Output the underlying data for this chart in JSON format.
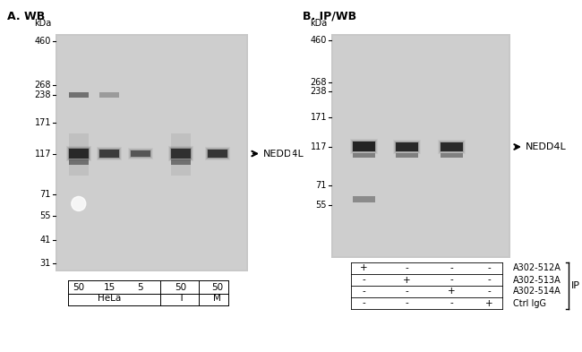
{
  "bg_color": "#e8e8e8",
  "panel_bg": "#d0d0d0",
  "title_A": "A. WB",
  "title_B": "B. IP/WB",
  "marker_label": "kDa",
  "markers": [
    460,
    268,
    238,
    171,
    117,
    71,
    55,
    41,
    31
  ],
  "markers_B": [
    460,
    268,
    238,
    171,
    117,
    71,
    55
  ],
  "label_NEDD4L": "←NEDD4L",
  "label_IP": "IP",
  "panel_A_lanes": [
    "50",
    "15",
    "5",
    "50",
    "50"
  ],
  "panel_A_groups": [
    [
      "50",
      "15",
      "5"
    ],
    [
      "50"
    ],
    [
      "50"
    ]
  ],
  "panel_A_group_labels": [
    "HeLa",
    "T",
    "M"
  ],
  "panel_B_cols": [
    "+",
    "-",
    "-",
    "-"
  ],
  "panel_B_rows": [
    "A302-512A",
    "A302-513A",
    "A302-514A",
    "Ctrl IgG"
  ],
  "panel_B_table": [
    [
      "+",
      "-",
      "-",
      "-"
    ],
    [
      "-",
      "+",
      "-",
      "-"
    ],
    [
      "-",
      "-",
      "+",
      "-"
    ],
    [
      "-",
      "-",
      "-",
      "+"
    ]
  ]
}
